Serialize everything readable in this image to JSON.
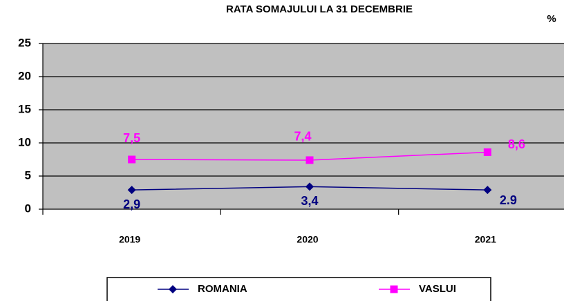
{
  "chart_data": {
    "type": "line",
    "title": "RATA SOMAJULUI LA 31 DECEMBRIE",
    "unit": "%",
    "categories": [
      "2019",
      "2020",
      "2021"
    ],
    "series": [
      {
        "name": "ROMANIA",
        "color": "#000080",
        "marker": "diamond",
        "values": [
          2.9,
          3.4,
          2.9
        ],
        "value_labels": [
          "2,9",
          "3,4",
          "2.9"
        ]
      },
      {
        "name": "VASLUI",
        "color": "#ff00ff",
        "marker": "square",
        "values": [
          7.5,
          7.4,
          8.6
        ],
        "value_labels": [
          "7,5",
          "7,4",
          "8,6"
        ]
      }
    ],
    "ylim": [
      0,
      25
    ],
    "yticks": [
      0,
      5,
      10,
      15,
      20,
      25
    ],
    "grid": true
  }
}
